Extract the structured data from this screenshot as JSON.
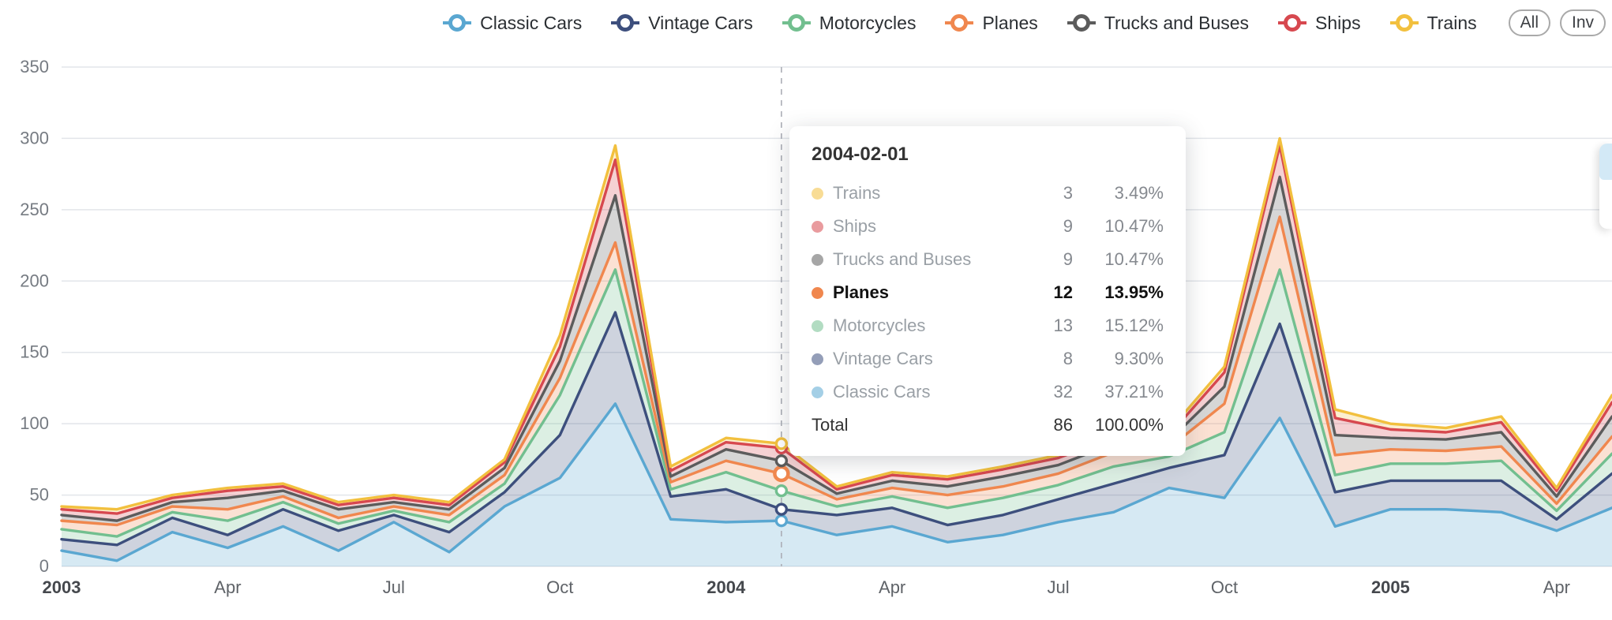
{
  "legend": {
    "all_label": "All",
    "inverse_label": "Inv"
  },
  "chart_data": {
    "type": "area",
    "stacked": true,
    "title": "",
    "xlabel": "",
    "ylabel": "",
    "ylim": [
      0,
      350
    ],
    "yticks": [
      0,
      50,
      100,
      150,
      200,
      250,
      300,
      350
    ],
    "grid": true,
    "legend_position": "top",
    "highlight_index": 13,
    "x": [
      "2003-01",
      "2003-02",
      "2003-03",
      "2003-04",
      "2003-05",
      "2003-06",
      "2003-07",
      "2003-08",
      "2003-09",
      "2003-10",
      "2003-11",
      "2003-12",
      "2004-01",
      "2004-02",
      "2004-03",
      "2004-04",
      "2004-05",
      "2004-06",
      "2004-07",
      "2004-08",
      "2004-09",
      "2004-10",
      "2004-11",
      "2004-12",
      "2005-01",
      "2005-02",
      "2005-03",
      "2005-04",
      "2005-05"
    ],
    "xticks": [
      {
        "index": 0,
        "label": "2003",
        "bold": true
      },
      {
        "index": 3,
        "label": "Apr",
        "bold": false
      },
      {
        "index": 6,
        "label": "Jul",
        "bold": false
      },
      {
        "index": 9,
        "label": "Oct",
        "bold": false
      },
      {
        "index": 12,
        "label": "2004",
        "bold": true
      },
      {
        "index": 15,
        "label": "Apr",
        "bold": false
      },
      {
        "index": 18,
        "label": "Jul",
        "bold": false
      },
      {
        "index": 21,
        "label": "Oct",
        "bold": false
      },
      {
        "index": 24,
        "label": "2005",
        "bold": true
      },
      {
        "index": 27,
        "label": "Apr",
        "bold": false
      }
    ],
    "series": [
      {
        "name": "Classic Cars",
        "color": "#5AA7D1",
        "values": [
          11,
          4,
          24,
          13,
          28,
          11,
          31,
          10,
          42,
          62,
          114,
          33,
          31,
          32,
          22,
          28,
          17,
          22,
          31,
          38,
          55,
          48,
          104,
          28,
          40,
          40,
          38,
          25,
          41
        ]
      },
      {
        "name": "Vintage Cars",
        "color": "#3D4F7D",
        "values": [
          8,
          11,
          10,
          9,
          12,
          14,
          5,
          14,
          10,
          30,
          64,
          16,
          23,
          8,
          14,
          13,
          12,
          14,
          16,
          20,
          14,
          30,
          66,
          24,
          20,
          20,
          22,
          8,
          24
        ]
      },
      {
        "name": "Motorcycles",
        "color": "#72BF8F",
        "values": [
          7,
          6,
          4,
          10,
          5,
          5,
          3,
          7,
          6,
          28,
          30,
          5,
          12,
          13,
          6,
          8,
          12,
          12,
          10,
          12,
          8,
          16,
          38,
          12,
          12,
          12,
          14,
          6,
          14
        ]
      },
      {
        "name": "Planes",
        "color": "#F0874E",
        "values": [
          6,
          8,
          4,
          8,
          4,
          4,
          3,
          5,
          6,
          12,
          19,
          5,
          8,
          12,
          5,
          6,
          9,
          8,
          8,
          10,
          6,
          20,
          37,
          14,
          10,
          9,
          10,
          5,
          12
        ]
      },
      {
        "name": "Trucks and Buses",
        "color": "#5C5C5C",
        "values": [
          4,
          3,
          3,
          8,
          4,
          6,
          3,
          4,
          5,
          12,
          33,
          4,
          8,
          9,
          4,
          5,
          6,
          7,
          6,
          6,
          5,
          12,
          28,
          14,
          8,
          8,
          10,
          5,
          14
        ]
      },
      {
        "name": "Ships",
        "color": "#D7484F",
        "values": [
          4,
          5,
          3,
          5,
          3,
          3,
          3,
          3,
          4,
          10,
          25,
          4,
          5,
          9,
          3,
          4,
          5,
          5,
          5,
          4,
          4,
          10,
          22,
          12,
          6,
          5,
          7,
          4,
          10
        ]
      },
      {
        "name": "Trains",
        "color": "#F2C03E",
        "values": [
          2,
          3,
          2,
          2,
          2,
          2,
          2,
          2,
          2,
          8,
          10,
          3,
          3,
          3,
          2,
          2,
          2,
          2,
          2,
          2,
          3,
          4,
          5,
          6,
          4,
          3,
          4,
          2,
          5
        ]
      }
    ]
  },
  "tooltip": {
    "title": "2004-02-01",
    "rows": [
      {
        "series": "Trains",
        "value": "3",
        "percent": "3.49%",
        "emphasis": false
      },
      {
        "series": "Ships",
        "value": "9",
        "percent": "10.47%",
        "emphasis": false
      },
      {
        "series": "Trucks and Buses",
        "value": "9",
        "percent": "10.47%",
        "emphasis": false
      },
      {
        "series": "Planes",
        "value": "12",
        "percent": "13.95%",
        "emphasis": true
      },
      {
        "series": "Motorcycles",
        "value": "13",
        "percent": "15.12%",
        "emphasis": false
      },
      {
        "series": "Vintage Cars",
        "value": "8",
        "percent": "9.30%",
        "emphasis": false
      },
      {
        "series": "Classic Cars",
        "value": "32",
        "percent": "37.21%",
        "emphasis": false
      }
    ],
    "total": {
      "label": "Total",
      "value": "86",
      "percent": "100.00%"
    }
  },
  "axis_colors": {
    "grid": "#E2E5EA",
    "y_label": "#767B82",
    "x_label": "#5F6368",
    "x_label_bold": "#45484D",
    "dashed_line": "#ABAEB6"
  }
}
